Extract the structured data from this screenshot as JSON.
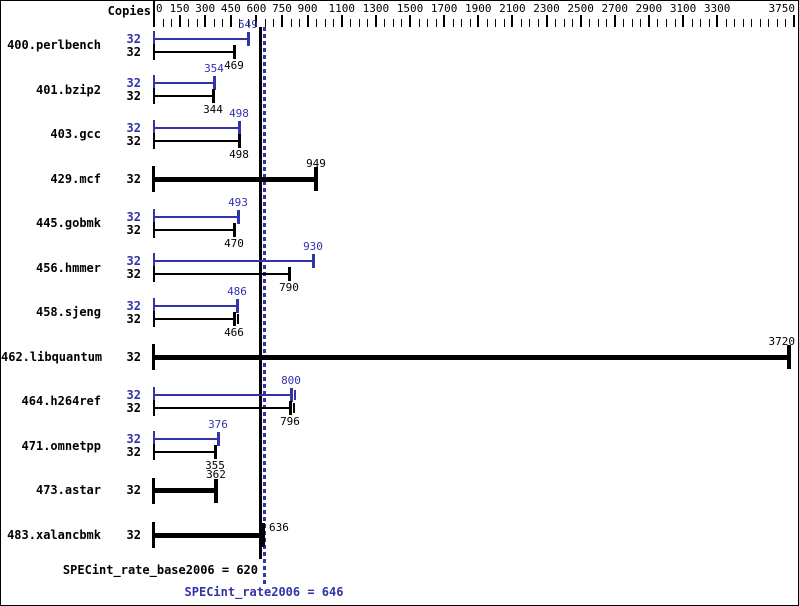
{
  "header": {
    "copies_label": "Copies"
  },
  "colors": {
    "peak_blue": "#3333aa",
    "base_black": "#000000",
    "background": "#ffffff"
  },
  "chart_data": {
    "type": "bar",
    "orientation": "horizontal",
    "title": "",
    "xlabel": "",
    "ylabel": "Copies",
    "axis": {
      "min": 0,
      "max": 3750,
      "minor_tick_step": 50,
      "major_ticks": [
        0,
        150,
        300,
        450,
        600,
        750,
        900,
        1100,
        1300,
        1500,
        1700,
        1900,
        2100,
        2300,
        2500,
        2700,
        2900,
        3100,
        3300,
        3750
      ]
    },
    "benchmarks": [
      {
        "name": "400.perlbench",
        "peak_copies": "32",
        "base_copies": "32",
        "peak": 549,
        "base": 469
      },
      {
        "name": "401.bzip2",
        "peak_copies": "32",
        "base_copies": "32",
        "peak": 354,
        "base": 344
      },
      {
        "name": "403.gcc",
        "peak_copies": "32",
        "base_copies": "32",
        "peak": 498,
        "base": 498
      },
      {
        "name": "429.mcf",
        "copies": "32",
        "base": 949,
        "base_only": true
      },
      {
        "name": "445.gobmk",
        "peak_copies": "32",
        "base_copies": "32",
        "peak": 493,
        "base": 470
      },
      {
        "name": "456.hmmer",
        "peak_copies": "32",
        "base_copies": "32",
        "peak": 930,
        "base": 790
      },
      {
        "name": "458.sjeng",
        "peak_copies": "32",
        "base_copies": "32",
        "peak": 486,
        "base": 466,
        "base_extra_run_tick": true
      },
      {
        "name": "462.libquantum",
        "copies": "32",
        "base": 3720,
        "base_only": true
      },
      {
        "name": "464.h264ref",
        "peak_copies": "32",
        "base_copies": "32",
        "peak": 800,
        "base": 796,
        "peak_extra_run_tick": true,
        "base_extra_run_tick": true
      },
      {
        "name": "471.omnetpp",
        "peak_copies": "32",
        "base_copies": "32",
        "peak": 376,
        "base": 355
      },
      {
        "name": "473.astar",
        "copies": "32",
        "base": 362,
        "base_only": true
      },
      {
        "name": "483.xalancbmk",
        "copies": "32",
        "base": 636,
        "base_only": true,
        "label_beside_line": true
      }
    ],
    "reference_lines": [
      {
        "name": "base",
        "value": 620,
        "style": "solid",
        "color": "#000000"
      },
      {
        "name": "peak",
        "value": 646,
        "style": "dotted",
        "color": "#3333aa"
      }
    ]
  },
  "footer": {
    "base_summary": "SPECint_rate_base2006 = 620",
    "peak_summary": "SPECint_rate2006 = 646"
  }
}
